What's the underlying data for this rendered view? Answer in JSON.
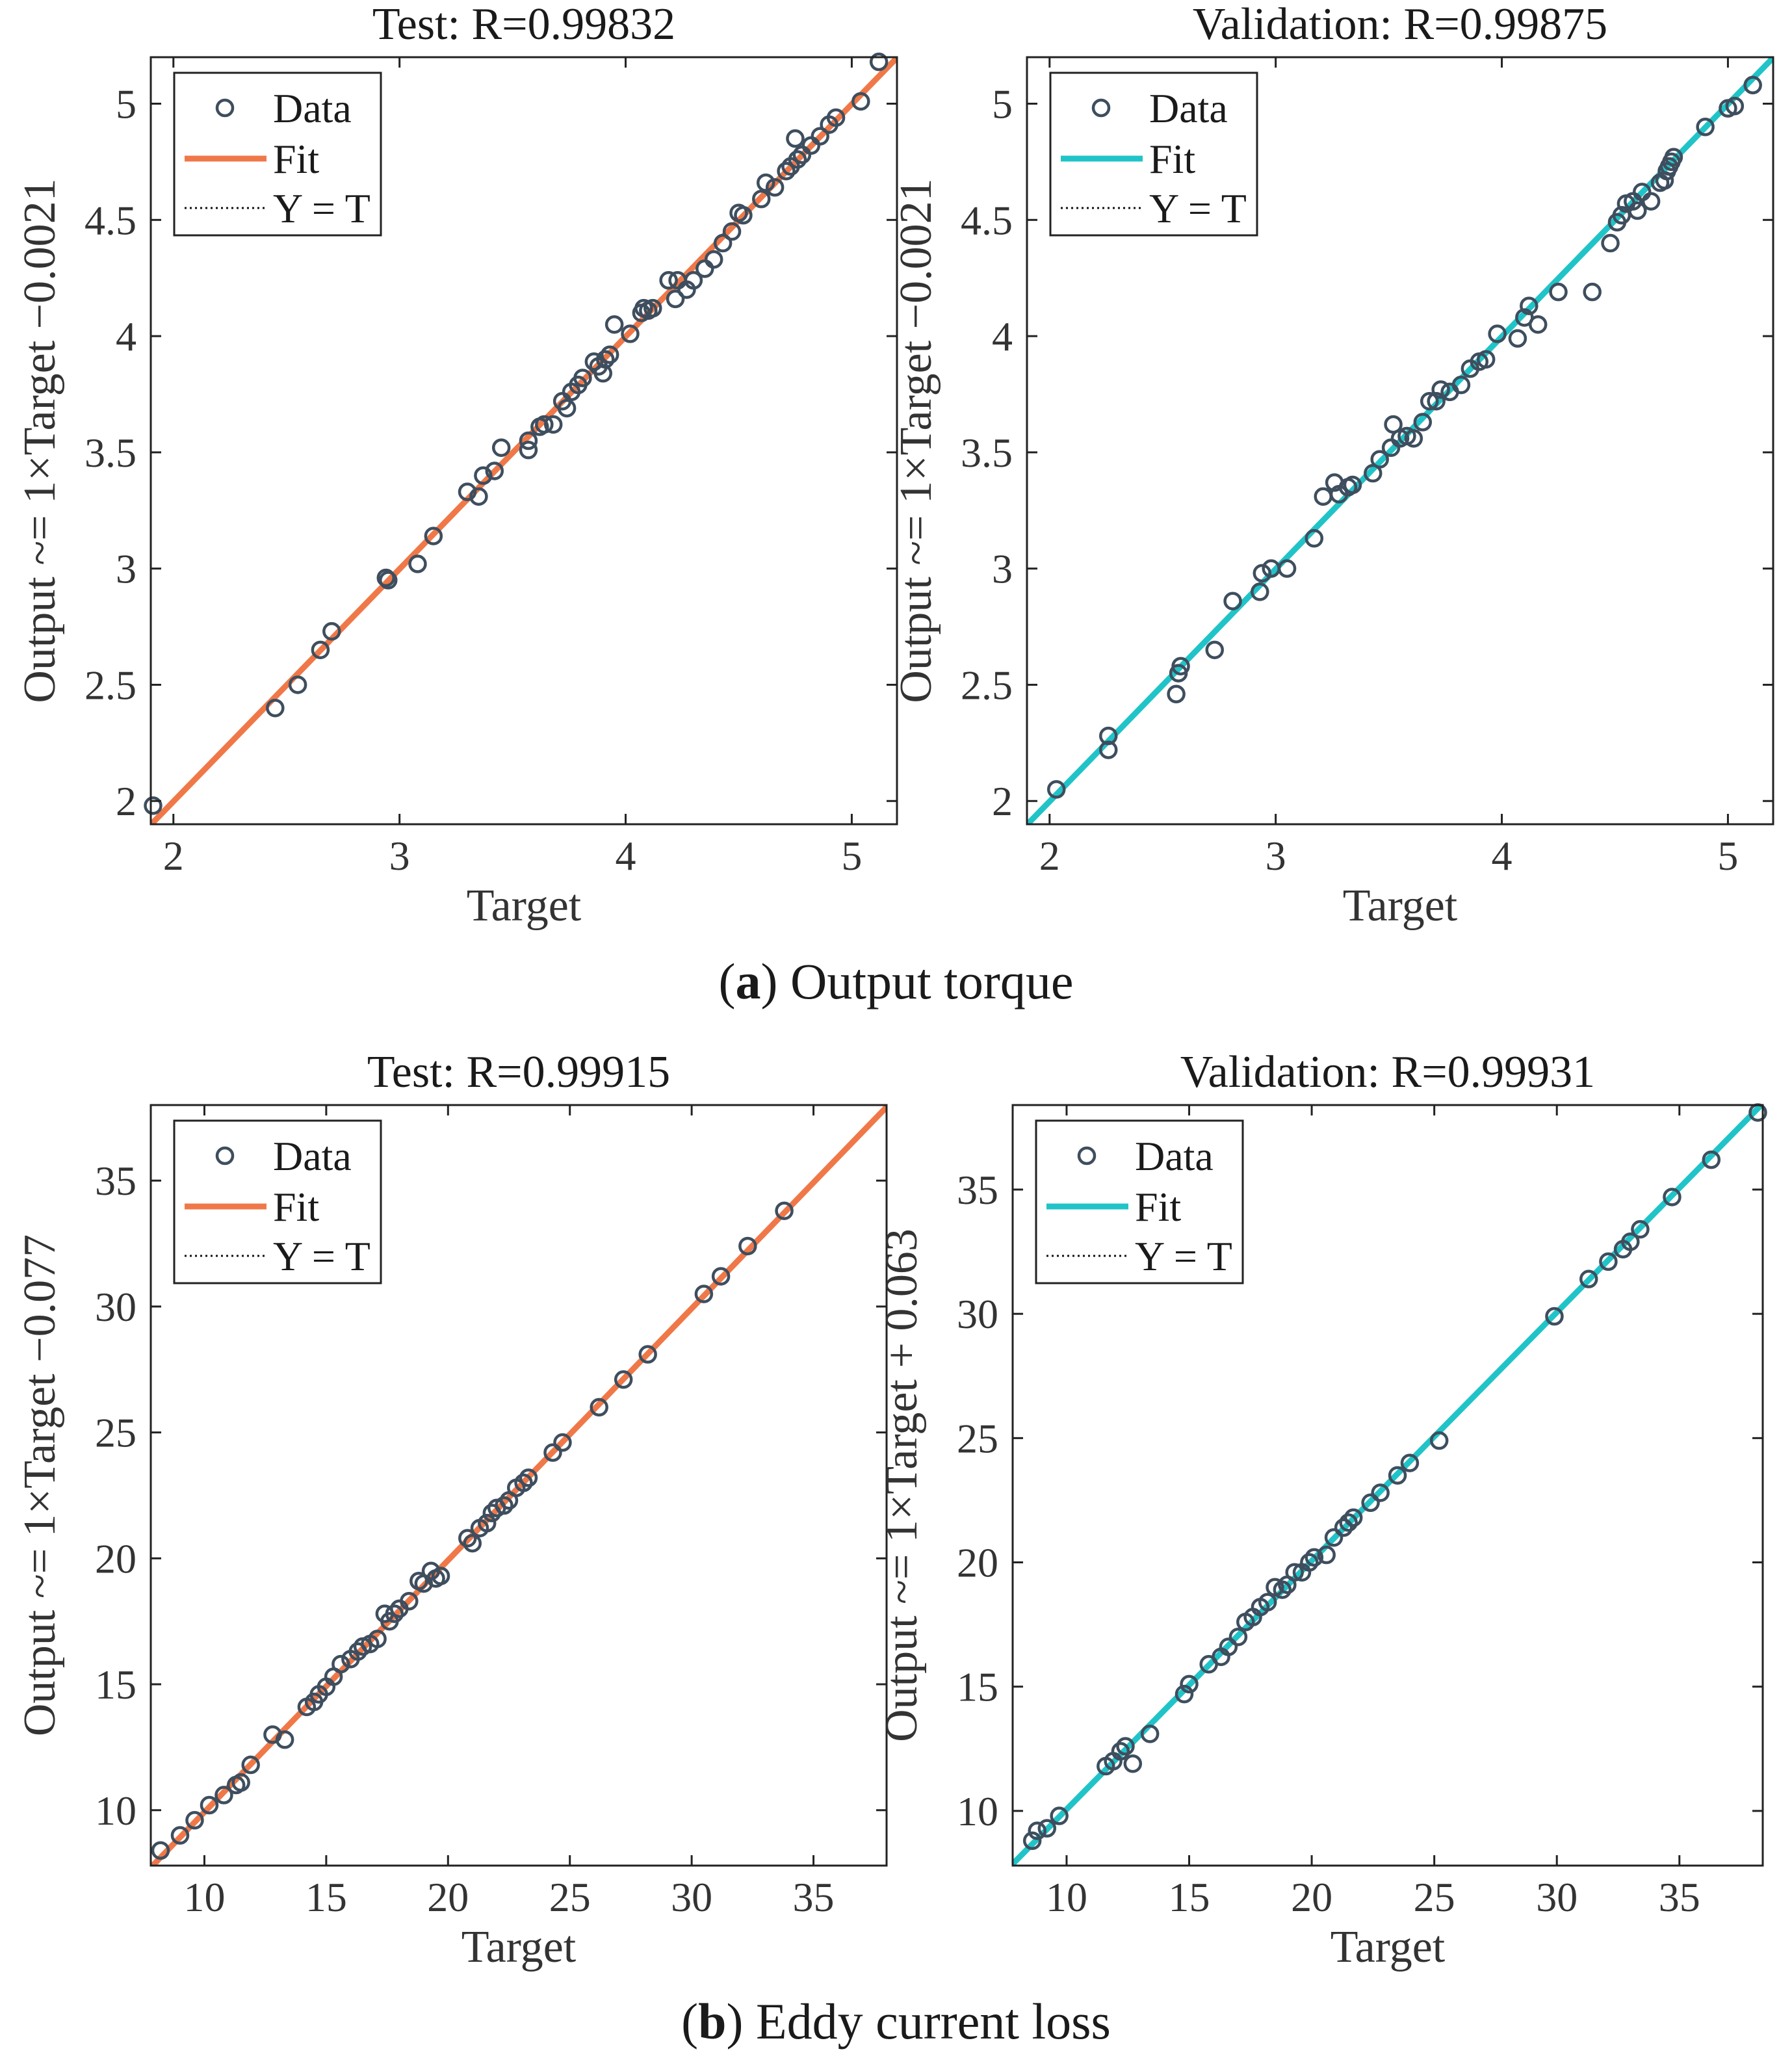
{
  "captions": [
    {
      "letter": "a",
      "open": "(",
      "close": ")",
      "text": " Output torque"
    },
    {
      "letter": "b",
      "open": "(",
      "close": ")",
      "text": " Eddy current loss"
    }
  ],
  "colors": {
    "orange": "#f07848",
    "teal": "#20c4c8",
    "marker": "#3e4e5e",
    "axis": "#222222",
    "text": "#333333"
  },
  "chart_data": [
    {
      "type": "scatter",
      "title": "Test: R=0.99832",
      "xlabel": "Target",
      "ylabel": "Output ~= 1×Target −0.0021",
      "xlim": [
        1.9,
        5.2
      ],
      "ylim": [
        1.9,
        5.2
      ],
      "xticks": [
        2,
        3,
        4,
        5
      ],
      "yticks": [
        2,
        2.5,
        3,
        3.5,
        4,
        4.5,
        5
      ],
      "yticklabels": [
        "2",
        "2.5",
        "3",
        "3.5",
        "4",
        "4.5",
        "5"
      ],
      "fit_color": "#f07848",
      "fit": {
        "slope": 1,
        "intercept": -0.0021
      },
      "legend": {
        "placement": "top-left",
        "entries": [
          "Data",
          "Fit",
          "Y = T"
        ]
      },
      "x": [
        1.91,
        2.45,
        2.55,
        2.65,
        2.7,
        2.94,
        2.95,
        3.08,
        3.15,
        3.3,
        3.35,
        3.37,
        3.42,
        3.45,
        3.57,
        3.57,
        3.62,
        3.64,
        3.68,
        3.72,
        3.74,
        3.76,
        3.79,
        3.81,
        3.86,
        3.88,
        3.9,
        3.91,
        3.93,
        3.95,
        4.02,
        4.07,
        4.08,
        4.1,
        4.12,
        4.19,
        4.22,
        4.23,
        4.27,
        4.3,
        4.35,
        4.39,
        4.43,
        4.47,
        4.5,
        4.52,
        4.6,
        4.62,
        4.66,
        4.71,
        4.73,
        4.75,
        4.76,
        4.78,
        4.82,
        4.86,
        4.9,
        4.93,
        5.04,
        5.12
      ],
      "y": [
        1.98,
        2.4,
        2.5,
        2.65,
        2.73,
        2.96,
        2.95,
        3.02,
        3.14,
        3.33,
        3.31,
        3.4,
        3.42,
        3.52,
        3.51,
        3.55,
        3.61,
        3.62,
        3.62,
        3.72,
        3.69,
        3.76,
        3.79,
        3.82,
        3.89,
        3.87,
        3.84,
        3.9,
        3.92,
        4.05,
        4.01,
        4.1,
        4.12,
        4.11,
        4.12,
        4.24,
        4.16,
        4.24,
        4.2,
        4.24,
        4.29,
        4.33,
        4.4,
        4.45,
        4.53,
        4.52,
        4.59,
        4.66,
        4.64,
        4.71,
        4.73,
        4.85,
        4.76,
        4.78,
        4.82,
        4.86,
        4.91,
        4.94,
        5.01,
        5.18
      ]
    },
    {
      "type": "scatter",
      "title": "Validation: R=0.99875",
      "xlabel": "Target",
      "ylabel": "Output ~= 1×Target −0.0021",
      "xlim": [
        1.9,
        5.2
      ],
      "ylim": [
        1.9,
        5.2
      ],
      "xticks": [
        2,
        3,
        4,
        5
      ],
      "yticks": [
        2,
        2.5,
        3,
        3.5,
        4,
        4.5,
        5
      ],
      "yticklabels": [
        "2",
        "2.5",
        "3",
        "3.5",
        "4",
        "4.5",
        "5"
      ],
      "fit_color": "#20c4c8",
      "fit": {
        "slope": 1,
        "intercept": -0.0021
      },
      "legend": {
        "placement": "top-left",
        "entries": [
          "Data",
          "Fit",
          "Y = T"
        ]
      },
      "x": [
        2.03,
        2.26,
        2.26,
        2.56,
        2.57,
        2.58,
        2.73,
        2.81,
        2.93,
        2.94,
        2.98,
        3.05,
        3.17,
        3.21,
        3.26,
        3.28,
        3.32,
        3.34,
        3.43,
        3.46,
        3.51,
        3.52,
        3.55,
        3.58,
        3.61,
        3.65,
        3.68,
        3.71,
        3.73,
        3.77,
        3.82,
        3.86,
        3.9,
        3.93,
        3.98,
        4.07,
        4.1,
        4.12,
        4.16,
        4.25,
        4.4,
        4.48,
        4.51,
        4.53,
        4.55,
        4.58,
        4.6,
        4.62,
        4.66,
        4.7,
        4.72,
        4.73,
        4.74,
        4.75,
        4.76,
        4.9,
        5.0,
        5.03,
        5.11
      ],
      "y": [
        2.05,
        2.28,
        2.22,
        2.46,
        2.55,
        2.58,
        2.65,
        2.86,
        2.9,
        2.98,
        3.0,
        3.0,
        3.13,
        3.31,
        3.37,
        3.32,
        3.35,
        3.36,
        3.41,
        3.47,
        3.52,
        3.62,
        3.56,
        3.57,
        3.56,
        3.63,
        3.72,
        3.72,
        3.77,
        3.76,
        3.79,
        3.86,
        3.89,
        3.9,
        4.01,
        3.99,
        4.08,
        4.13,
        4.05,
        4.19,
        4.19,
        4.4,
        4.49,
        4.52,
        4.57,
        4.58,
        4.54,
        4.62,
        4.58,
        4.66,
        4.67,
        4.71,
        4.73,
        4.75,
        4.77,
        4.9,
        4.98,
        4.99,
        5.08
      ]
    },
    {
      "type": "scatter",
      "title": "Test: R=0.99915",
      "xlabel": "Target",
      "ylabel": "Output ~= 1×Target −0.077",
      "xlim": [
        7.8,
        38
      ],
      "ylim": [
        7.8,
        38
      ],
      "xticks": [
        10,
        15,
        20,
        25,
        30,
        35
      ],
      "yticks": [
        10,
        15,
        20,
        25,
        30,
        35
      ],
      "yticklabels": [
        "10",
        "15",
        "20",
        "25",
        "30",
        "35"
      ],
      "fit_color": "#f07848",
      "fit": {
        "slope": 1,
        "intercept": -0.077
      },
      "legend": {
        "placement": "top-left",
        "entries": [
          "Data",
          "Fit",
          "Y = T"
        ]
      },
      "x": [
        8.2,
        9.0,
        9.6,
        10.2,
        10.8,
        11.3,
        11.5,
        11.9,
        12.8,
        13.3,
        14.2,
        14.5,
        14.7,
        15.0,
        15.3,
        15.6,
        16.0,
        16.3,
        16.5,
        16.8,
        17.1,
        17.4,
        17.6,
        17.8,
        18.0,
        18.4,
        18.8,
        19.0,
        19.3,
        19.5,
        19.7,
        20.8,
        21.0,
        21.3,
        21.6,
        21.8,
        22.0,
        22.3,
        22.5,
        22.8,
        23.1,
        23.3,
        24.3,
        24.7,
        26.2,
        27.2,
        28.2,
        30.5,
        31.2,
        32.3,
        33.8
      ],
      "y": [
        8.4,
        9.0,
        9.6,
        10.2,
        10.6,
        11.0,
        11.1,
        11.8,
        13.0,
        12.8,
        14.1,
        14.3,
        14.6,
        14.9,
        15.3,
        15.8,
        16.0,
        16.3,
        16.5,
        16.6,
        16.8,
        17.8,
        17.5,
        17.8,
        18.0,
        18.3,
        19.1,
        19.0,
        19.5,
        19.2,
        19.3,
        20.8,
        20.6,
        21.2,
        21.4,
        21.8,
        22.0,
        22.1,
        22.3,
        22.8,
        23.0,
        23.2,
        24.2,
        24.6,
        26.0,
        27.1,
        28.1,
        30.5,
        31.2,
        32.4,
        33.8
      ]
    },
    {
      "type": "scatter",
      "title": "Validation: R=0.99931",
      "xlabel": "Target",
      "ylabel": "Output ~= 1×Target + 0.063",
      "xlim": [
        7.8,
        38.4
      ],
      "ylim": [
        7.8,
        38.4
      ],
      "xticks": [
        10,
        15,
        20,
        25,
        30,
        35
      ],
      "yticks": [
        10,
        15,
        20,
        25,
        30,
        35
      ],
      "yticklabels": [
        "10",
        "15",
        "20",
        "25",
        "30",
        "35"
      ],
      "fit_color": "#20c4c8",
      "fit": {
        "slope": 1,
        "intercept": 0.063
      },
      "legend": {
        "placement": "top-left",
        "entries": [
          "Data",
          "Fit",
          "Y = T"
        ]
      },
      "x": [
        8.6,
        8.8,
        9.2,
        9.7,
        11.6,
        11.9,
        12.2,
        12.4,
        12.7,
        13.4,
        14.8,
        15.0,
        15.8,
        16.3,
        16.6,
        17.0,
        17.3,
        17.6,
        17.9,
        18.2,
        18.5,
        18.8,
        19.0,
        19.3,
        19.6,
        19.9,
        20.1,
        20.6,
        20.9,
        21.3,
        21.5,
        21.7,
        22.4,
        22.8,
        23.5,
        24.0,
        25.2,
        29.9,
        31.3,
        32.1,
        32.7,
        33.0,
        33.4,
        34.7,
        36.3,
        38.2
      ],
      "y": [
        8.8,
        9.2,
        9.3,
        9.8,
        11.8,
        12.0,
        12.4,
        12.6,
        11.9,
        13.1,
        14.7,
        15.1,
        15.9,
        16.2,
        16.6,
        17.0,
        17.6,
        17.8,
        18.2,
        18.4,
        19.0,
        18.9,
        19.1,
        19.6,
        19.6,
        20.0,
        20.2,
        20.3,
        21.0,
        21.4,
        21.6,
        21.8,
        22.4,
        22.8,
        23.5,
        24.0,
        24.9,
        29.9,
        31.4,
        32.1,
        32.6,
        32.9,
        33.4,
        34.7,
        36.2,
        38.1
      ]
    }
  ]
}
